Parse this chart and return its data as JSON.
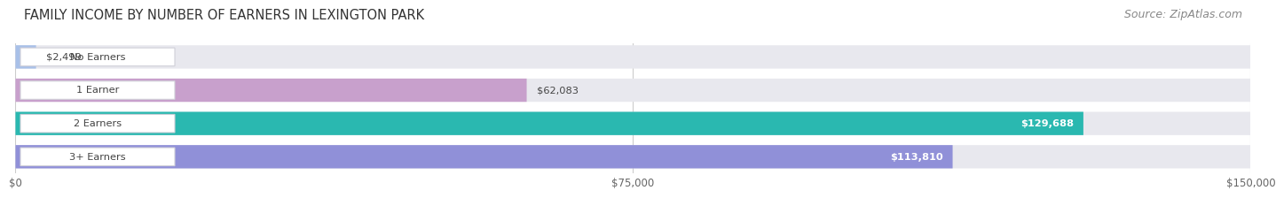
{
  "title": "FAMILY INCOME BY NUMBER OF EARNERS IN LEXINGTON PARK",
  "source": "Source: ZipAtlas.com",
  "categories": [
    "No Earners",
    "1 Earner",
    "2 Earners",
    "3+ Earners"
  ],
  "values": [
    2499,
    62083,
    129688,
    113810
  ],
  "bar_colors": [
    "#a8c0e8",
    "#c8a0cc",
    "#2ab8b0",
    "#9090d8"
  ],
  "background_color": "#f5f5f8",
  "bar_bg_color": "#e8e8ee",
  "xlim": [
    0,
    150000
  ],
  "xtick_labels": [
    "$0",
    "$75,000",
    "$150,000"
  ],
  "value_labels": [
    "$2,499",
    "$62,083",
    "$129,688",
    "$113,810"
  ],
  "value_inside": [
    false,
    false,
    true,
    true
  ],
  "title_fontsize": 10.5,
  "source_fontsize": 9,
  "fig_width": 14.06,
  "fig_height": 2.33
}
